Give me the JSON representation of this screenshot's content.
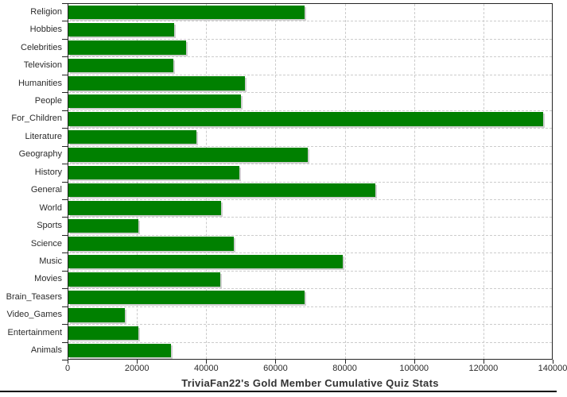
{
  "chart_data": {
    "type": "bar",
    "orientation": "horizontal",
    "title": "TriviaFan22's Gold Member Cumulative Quiz Stats",
    "xlabel": "",
    "ylabel": "",
    "categories": [
      "Religion",
      "Hobbies",
      "Celebrities",
      "Television",
      "Humanities",
      "People",
      "For_Children",
      "Literature",
      "Geography",
      "History",
      "General",
      "World",
      "Sports",
      "Science",
      "Music",
      "Movies",
      "Brain_Teasers",
      "Video_Games",
      "Entertainment",
      "Animals"
    ],
    "values": [
      68500,
      30800,
      34200,
      30600,
      51100,
      50000,
      137200,
      37100,
      69300,
      49600,
      88900,
      44400,
      20400,
      48000,
      79300,
      44000,
      68400,
      16500,
      20400,
      29900
    ],
    "xlim": [
      0,
      140000
    ],
    "x_ticks": [
      0,
      20000,
      40000,
      60000,
      80000,
      100000,
      120000,
      140000
    ],
    "grid": true,
    "legend": "none",
    "bar_color": "#008000",
    "shadow_color": "#d0d0d0",
    "grid_color": "#cccccc",
    "axis_color": "#242424",
    "background_color": "#ffffff"
  }
}
